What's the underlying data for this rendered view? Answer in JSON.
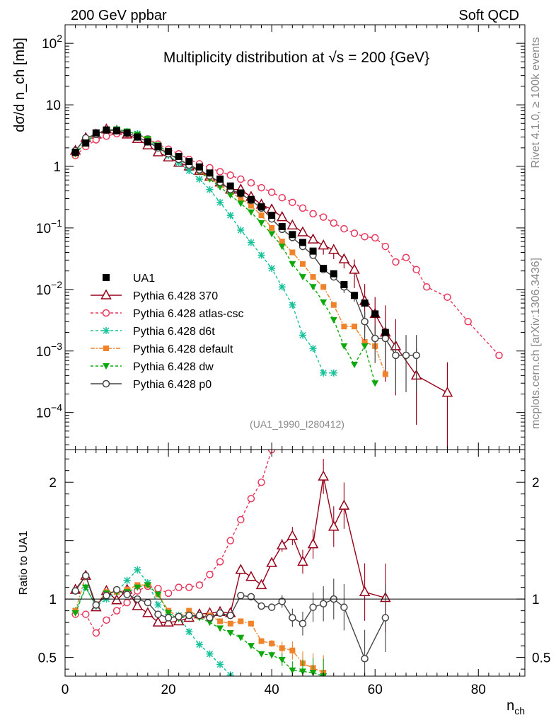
{
  "header": {
    "left": "200 GeV ppbar",
    "right": "Soft QCD",
    "side_top": "Rivet 4.1.0, ≥ 100k events",
    "side_bottom": "mcplots.cern.ch [arXiv:1306.3436]",
    "watermark": "(UA1_1990_I280412)"
  },
  "chart_data": {
    "type": "line",
    "title": "Multiplicity distribution at √s = 200 {GeV}",
    "xlabel": "n_ch",
    "ylabel": "dσ/d n_ch [mb]",
    "ratio_ylabel": "Ratio to UA1",
    "xlim": [
      0,
      89
    ],
    "ylim": [
      2.5e-05,
      200
    ],
    "ratio_ylim": [
      0.34,
      2.28
    ],
    "x_ticks": [
      0,
      20,
      40,
      60,
      80
    ],
    "y_ticks": [
      {
        "v": 100,
        "label": "10",
        "sup": "2"
      },
      {
        "v": 10,
        "label": "10",
        "sup": ""
      },
      {
        "v": 1,
        "label": "1",
        "sup": ""
      },
      {
        "v": 0.1,
        "label": "10",
        "sup": "−1"
      },
      {
        "v": 0.01,
        "label": "10",
        "sup": "−2"
      },
      {
        "v": 0.001,
        "label": "10",
        "sup": "−3"
      },
      {
        "v": 0.0001,
        "label": "10",
        "sup": "−4"
      }
    ],
    "ratio_ticks": [
      {
        "v": 0.5,
        "label": "0.5"
      },
      {
        "v": 1,
        "label": "1"
      },
      {
        "v": 2,
        "label": "2"
      }
    ],
    "series": [
      {
        "name": "UA1",
        "color": "#000000",
        "marker": "square-filled",
        "dash": "none",
        "x": [
          2,
          4,
          6,
          8,
          10,
          12,
          14,
          16,
          18,
          20,
          22,
          24,
          26,
          28,
          30,
          32,
          34,
          36,
          38,
          40,
          42,
          44,
          46,
          48,
          50,
          52,
          54,
          56,
          58,
          60,
          62
        ],
        "y": [
          1.7,
          2.4,
          3.5,
          3.9,
          3.8,
          3.5,
          3.0,
          2.5,
          2.1,
          1.75,
          1.45,
          1.2,
          0.98,
          0.78,
          0.62,
          0.48,
          0.37,
          0.29,
          0.22,
          0.16,
          0.105,
          0.078,
          0.058,
          0.042,
          0.022,
          0.018,
          0.012,
          0.008,
          0.006,
          0.004,
          0.002
        ],
        "ratio": [],
        "err": []
      },
      {
        "name": "Pythia 6.428 370",
        "color": "#960018",
        "marker": "triangle-open",
        "dash": "none",
        "x": [
          2,
          4,
          6,
          8,
          10,
          12,
          14,
          16,
          18,
          20,
          22,
          24,
          26,
          28,
          30,
          32,
          34,
          36,
          38,
          40,
          42,
          44,
          46,
          48,
          50,
          52,
          54,
          56,
          58,
          60,
          62,
          64,
          68,
          74
        ],
        "y": [
          1.8,
          2.9,
          3.3,
          4.0,
          3.8,
          3.3,
          2.8,
          2.2,
          1.7,
          1.4,
          1.15,
          1.0,
          0.85,
          0.68,
          0.55,
          0.42,
          0.42,
          0.32,
          0.24,
          0.2,
          0.15,
          0.11,
          0.085,
          0.065,
          0.052,
          0.044,
          0.031,
          0.021,
          0.0065,
          0.004,
          0.002,
          0.0012,
          0.0004,
          0.00021
        ],
        "ratio": [
          1.08,
          1.2,
          0.93,
          1.07,
          0.99,
          1.08,
          0.94,
          0.88,
          0.8,
          0.8,
          0.81,
          0.84,
          0.87,
          0.88,
          0.89,
          0.88,
          1.25,
          1.19,
          1.12,
          1.31,
          1.46,
          1.54,
          1.32,
          1.47,
          2.05,
          1.62,
          1.8,
          1.06,
          1.01
        ],
        "ratio_x": [
          2,
          4,
          6,
          8,
          10,
          12,
          14,
          16,
          18,
          20,
          22,
          24,
          26,
          28,
          30,
          32,
          34,
          36,
          38,
          40,
          42,
          44,
          46,
          48,
          50,
          52,
          54,
          58,
          62
        ],
        "err": [
          0,
          0,
          0,
          0,
          0,
          0,
          0,
          0,
          0,
          0,
          0,
          0,
          0,
          0,
          0,
          0,
          0,
          0,
          0,
          0,
          0,
          0,
          0,
          0,
          0.15,
          0.15,
          0.15,
          0.3,
          0.5,
          0.5,
          0.8,
          0.8,
          0.8,
          0.9
        ]
      },
      {
        "name": "Pythia 6.428 atlas-csc",
        "color": "#e8385c",
        "marker": "circle-open",
        "dash": "4,3",
        "x": [
          2,
          4,
          6,
          8,
          10,
          12,
          14,
          16,
          18,
          20,
          22,
          24,
          26,
          28,
          30,
          32,
          34,
          36,
          38,
          40,
          42,
          44,
          46,
          48,
          50,
          52,
          54,
          56,
          58,
          60,
          62,
          64,
          66,
          68,
          70,
          74,
          78,
          84
        ],
        "y": [
          1.5,
          2.1,
          2.7,
          3.1,
          3.4,
          3.4,
          3.2,
          2.8,
          2.3,
          1.9,
          1.6,
          1.3,
          1.1,
          0.95,
          0.82,
          0.72,
          0.62,
          0.54,
          0.45,
          0.38,
          0.31,
          0.26,
          0.21,
          0.17,
          0.15,
          0.12,
          0.097,
          0.082,
          0.072,
          0.069,
          0.05,
          0.028,
          0.033,
          0.021,
          0.011,
          0.0075,
          0.003,
          0.00085
        ],
        "ratio": [
          0.87,
          0.87,
          0.71,
          0.82,
          0.9,
          0.97,
          1.07,
          1.11,
          1.09,
          1.05,
          1.1,
          1.1,
          1.12,
          1.21,
          1.32,
          1.5,
          1.68,
          1.86,
          2.0,
          2.28
        ],
        "ratio_x": [
          2,
          4,
          6,
          8,
          10,
          12,
          14,
          16,
          18,
          20,
          22,
          24,
          26,
          28,
          30,
          32,
          34,
          36,
          38,
          40
        ],
        "err": []
      },
      {
        "name": "Pythia 6.428 d6t",
        "color": "#17c29a",
        "marker": "star",
        "dash": "4,3",
        "x": [
          2,
          4,
          6,
          8,
          10,
          12,
          14,
          16,
          18,
          20,
          22,
          24,
          26,
          28,
          30,
          32,
          34,
          36,
          38,
          40,
          42,
          44,
          46,
          48,
          50,
          52
        ],
        "y": [
          1.6,
          2.6,
          3.3,
          3.9,
          4.0,
          3.7,
          3.4,
          2.8,
          2.0,
          1.5,
          1.15,
          0.85,
          0.62,
          0.42,
          0.26,
          0.16,
          0.092,
          0.058,
          0.036,
          0.022,
          0.011,
          0.0056,
          0.0018,
          0.0011,
          0.00044,
          0.00044
        ],
        "ratio": [
          0.9,
          1.1,
          0.94,
          1.0,
          1.06,
          1.16,
          1.25,
          1.14,
          0.95,
          0.87,
          0.86,
          0.72,
          0.61,
          0.53,
          0.44,
          0.35
        ],
        "ratio_x": [
          2,
          4,
          6,
          8,
          10,
          12,
          14,
          16,
          18,
          20,
          22,
          24,
          26,
          28,
          30,
          32
        ],
        "err": []
      },
      {
        "name": "Pythia 6.428 default",
        "color": "#f0822a",
        "marker": "square-filled-small",
        "dash": "6,2,2,2",
        "x": [
          2,
          4,
          6,
          8,
          10,
          12,
          14,
          16,
          18,
          20,
          22,
          24,
          26,
          28,
          30,
          32,
          34,
          36,
          38,
          40,
          42,
          44,
          46,
          48,
          50,
          52,
          54,
          56,
          58,
          60,
          62
        ],
        "y": [
          1.6,
          2.4,
          3.4,
          3.8,
          3.9,
          3.7,
          3.3,
          2.8,
          2.2,
          1.6,
          1.3,
          1.1,
          0.85,
          0.64,
          0.5,
          0.38,
          0.3,
          0.23,
          0.16,
          0.1,
          0.06,
          0.04,
          0.026,
          0.016,
          0.011,
          0.0056,
          0.0025,
          0.0025,
          0.0014,
          0.0012,
          0.00042
        ],
        "ratio": [
          0.9,
          1.2,
          0.95,
          1.06,
          1.06,
          1.08,
          1.12,
          1.12,
          1.04,
          0.9,
          0.85,
          0.9,
          0.85,
          0.86,
          0.81,
          0.79,
          0.81,
          0.79,
          0.64,
          0.62,
          0.58,
          0.56,
          0.45,
          0.41,
          0.37
        ],
        "ratio_x": [
          2,
          4,
          6,
          8,
          10,
          12,
          14,
          16,
          18,
          20,
          22,
          24,
          26,
          28,
          30,
          32,
          34,
          36,
          38,
          40,
          42,
          44,
          46,
          48,
          50
        ],
        "err": []
      },
      {
        "name": "Pythia 6.428 dw",
        "color": "#0ea80e",
        "marker": "triangle-down-filled",
        "dash": "4,3",
        "x": [
          2,
          4,
          6,
          8,
          10,
          12,
          14,
          16,
          18,
          20,
          22,
          24,
          26,
          28,
          30,
          32,
          34,
          36,
          38,
          40,
          42,
          44,
          46,
          48,
          50,
          52,
          54,
          56,
          58,
          60
        ],
        "y": [
          1.6,
          2.4,
          3.4,
          3.9,
          4.0,
          3.7,
          3.3,
          2.8,
          2.2,
          1.7,
          1.3,
          1.05,
          0.82,
          0.62,
          0.46,
          0.34,
          0.25,
          0.18,
          0.12,
          0.08,
          0.05,
          0.026,
          0.016,
          0.011,
          0.0062,
          0.0032,
          0.0012,
          0.0006,
          0.0012,
          0.0003
        ],
        "ratio": [
          0.88,
          1.1,
          0.94,
          1.05,
          1.06,
          1.06,
          1.1,
          1.12,
          1.04,
          0.88,
          0.83,
          0.86,
          0.84,
          0.8,
          0.75,
          0.71,
          0.67,
          0.6,
          0.53,
          0.52,
          0.48,
          0.39,
          0.38,
          0.37,
          0.34
        ],
        "ratio_x": [
          2,
          4,
          6,
          8,
          10,
          12,
          14,
          16,
          18,
          20,
          22,
          24,
          26,
          28,
          30,
          32,
          34,
          36,
          38,
          40,
          42,
          44,
          46,
          48,
          50
        ],
        "err": []
      },
      {
        "name": "Pythia 6.428 p0",
        "color": "#444444",
        "marker": "circle-open",
        "dash": "none",
        "x": [
          2,
          4,
          6,
          8,
          10,
          12,
          14,
          16,
          18,
          20,
          22,
          24,
          26,
          28,
          30,
          32,
          34,
          36,
          38,
          40,
          42,
          44,
          46,
          48,
          50,
          52,
          54,
          56,
          58,
          60,
          62,
          64,
          66,
          68
        ],
        "y": [
          1.8,
          2.9,
          3.3,
          3.9,
          3.8,
          3.5,
          3.0,
          2.5,
          2.0,
          1.6,
          1.3,
          1.05,
          0.88,
          0.7,
          0.55,
          0.42,
          0.36,
          0.28,
          0.21,
          0.14,
          0.095,
          0.07,
          0.05,
          0.036,
          0.021,
          0.016,
          0.011,
          0.008,
          0.003,
          0.0016,
          0.0016,
          0.00085,
          0.00085,
          0.00085
        ],
        "ratio": [
          1.07,
          1.2,
          0.95,
          1.03,
          1.08,
          1.04,
          1.0,
          0.97,
          0.87,
          0.84,
          0.85,
          0.86,
          0.86,
          0.84,
          0.88,
          0.86,
          1.03,
          1.02,
          0.94,
          0.93,
          0.98,
          0.84,
          0.79,
          0.93,
          0.96,
          1.0,
          0.93,
          0.49,
          0.84
        ],
        "ratio_x": [
          2,
          4,
          6,
          8,
          10,
          12,
          14,
          16,
          18,
          20,
          22,
          24,
          26,
          28,
          30,
          32,
          34,
          36,
          38,
          40,
          42,
          44,
          46,
          48,
          50,
          52,
          54,
          58,
          62
        ],
        "err": [
          0,
          0,
          0,
          0,
          0,
          0,
          0,
          0,
          0,
          0,
          0,
          0,
          0,
          0,
          0,
          0,
          0,
          0,
          0,
          0,
          0,
          0,
          0,
          0,
          0,
          0,
          0.1,
          0.1,
          0.3,
          0.4,
          0.5,
          0.6,
          0.6,
          0.6
        ]
      }
    ]
  }
}
